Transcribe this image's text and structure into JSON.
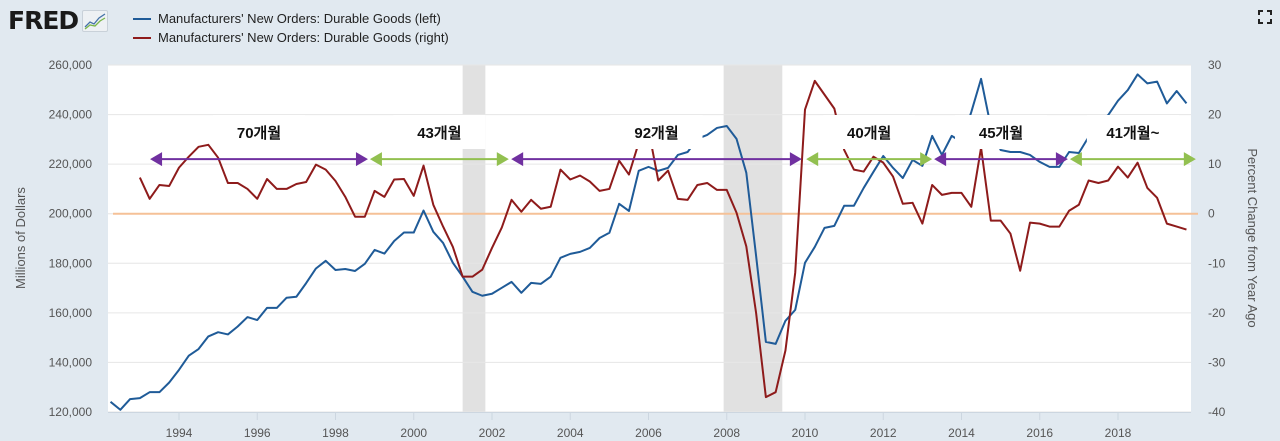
{
  "header": {
    "logo": "FRED",
    "legend": [
      {
        "label": "Manufacturers' New Orders: Durable Goods (left)",
        "color": "#1f5b98"
      },
      {
        "label": "Manufacturers' New Orders: Durable Goods (right)",
        "color": "#8e1b1b"
      }
    ],
    "fullscreen_icon": "expand-icon"
  },
  "chart_data": {
    "type": "line",
    "ylabel_left": "Millions of Dollars",
    "ylabel_right": "Percent Change from Year Ago",
    "ylim_left": [
      120000,
      260000
    ],
    "ylim_right": [
      -40,
      30
    ],
    "xlim": [
      1992.2,
      2019.9
    ],
    "x_ticks": [
      "1994",
      "1996",
      "1998",
      "2000",
      "2002",
      "2004",
      "2006",
      "2008",
      "2010",
      "2012",
      "2014",
      "2016",
      "2018"
    ],
    "y_ticks_left": [
      "260,000",
      "240,000",
      "220,000",
      "200,000",
      "180,000",
      "160,000",
      "140,000",
      "120,000"
    ],
    "y_ticks_right": [
      "30",
      "20",
      "10",
      "0",
      "-10",
      "-20",
      "-30",
      "-40"
    ],
    "grid": true,
    "zero_line_color": "#f5c197",
    "recessions": [
      [
        2001.25,
        2001.83
      ],
      [
        2007.92,
        2009.42
      ]
    ],
    "series": [
      {
        "name": "Manufacturers' New Orders: Durable Goods (left)",
        "axis": "left",
        "color": "#1f5b98",
        "start": 1992.25,
        "step": 0.25,
        "values": [
          124100,
          120900,
          125200,
          125600,
          128000,
          128000,
          131900,
          137000,
          142700,
          145400,
          150500,
          152200,
          151300,
          154500,
          158300,
          157100,
          162000,
          162000,
          166100,
          166500,
          172000,
          177900,
          181000,
          177300,
          177700,
          176900,
          179800,
          185400,
          183900,
          189000,
          192400,
          192400,
          201300,
          192700,
          188200,
          180200,
          174600,
          168500,
          166900,
          167700,
          170100,
          172500,
          168100,
          172100,
          171700,
          174600,
          182200,
          183800,
          184600,
          186200,
          190200,
          192300,
          204000,
          201100,
          217300,
          218900,
          217300,
          218500,
          223700,
          224900,
          230200,
          231800,
          234600,
          235400,
          230200,
          216500,
          183000,
          148300,
          147500,
          156800,
          161200,
          180200,
          186600,
          194300,
          195100,
          203200,
          203200,
          210400,
          216900,
          223300,
          218500,
          214400,
          221700,
          219300,
          231400,
          223700,
          231400,
          229000,
          241000,
          254400,
          235000,
          225700,
          224900,
          224900,
          223700,
          220900,
          218900,
          218900,
          224900,
          224500,
          231000,
          237000,
          239800,
          245600,
          249900,
          256200,
          252600,
          253300,
          244500,
          249500,
          244500
        ]
      },
      {
        "name": "Manufacturers' New Orders: Durable Goods (right)",
        "axis": "right",
        "color": "#8e1b1b",
        "start": 1993.0,
        "step": 0.25,
        "values": [
          7.3,
          3,
          5.8,
          5.6,
          9.3,
          11.5,
          13.5,
          13.9,
          11.3,
          6.2,
          6.2,
          5,
          3,
          7,
          5,
          5,
          6,
          6.4,
          9.9,
          8.9,
          6.6,
          3.4,
          -0.6,
          -0.6,
          4.6,
          3.4,
          6.9,
          7,
          3.6,
          9.7,
          1.8,
          -2.6,
          -6.7,
          -12.7,
          -12.7,
          -11.3,
          -6.9,
          -2.8,
          2.8,
          0.4,
          2.8,
          1,
          1.4,
          8.9,
          6.9,
          7.7,
          6.5,
          4.6,
          5,
          10.7,
          7.9,
          14.3,
          17,
          6.7,
          8.7,
          3,
          2.8,
          5.8,
          6.2,
          4.8,
          4.8,
          0.2,
          -6.6,
          -20,
          -37,
          -36,
          -27.6,
          -11.9,
          21,
          26.8,
          24,
          21.2,
          12.9,
          8.9,
          8.5,
          11.5,
          10.3,
          7.5,
          2,
          2.2,
          -2,
          5.8,
          3.8,
          4.2,
          4.2,
          1.4,
          13.3,
          -1.4,
          -1.4,
          -4,
          -11.5,
          -1.8,
          -2,
          -2.6,
          -2.6,
          0.6,
          1.8,
          6.7,
          6.2,
          6.7,
          9.5,
          7.3,
          10.3,
          5.2,
          3.2,
          -2,
          -2.6,
          -3.2
        ]
      }
    ],
    "annotations": [
      {
        "label": "70개월",
        "from": 1993.26,
        "to": 1998.83,
        "color": "#7030a0"
      },
      {
        "label": "43개월",
        "from": 1998.88,
        "to": 2002.43,
        "color": "#92c050"
      },
      {
        "label": "92개월",
        "from": 2002.49,
        "to": 2009.92,
        "color": "#7030a0"
      },
      {
        "label": "40개월",
        "from": 2010.03,
        "to": 2013.25,
        "color": "#92c050"
      },
      {
        "label": "45개월",
        "from": 2013.3,
        "to": 2016.72,
        "color": "#7030a0"
      },
      {
        "label": "41개월~",
        "from": 2016.77,
        "to": 2019.99,
        "color": "#92c050"
      }
    ],
    "annotation_level_pct": 11
  }
}
